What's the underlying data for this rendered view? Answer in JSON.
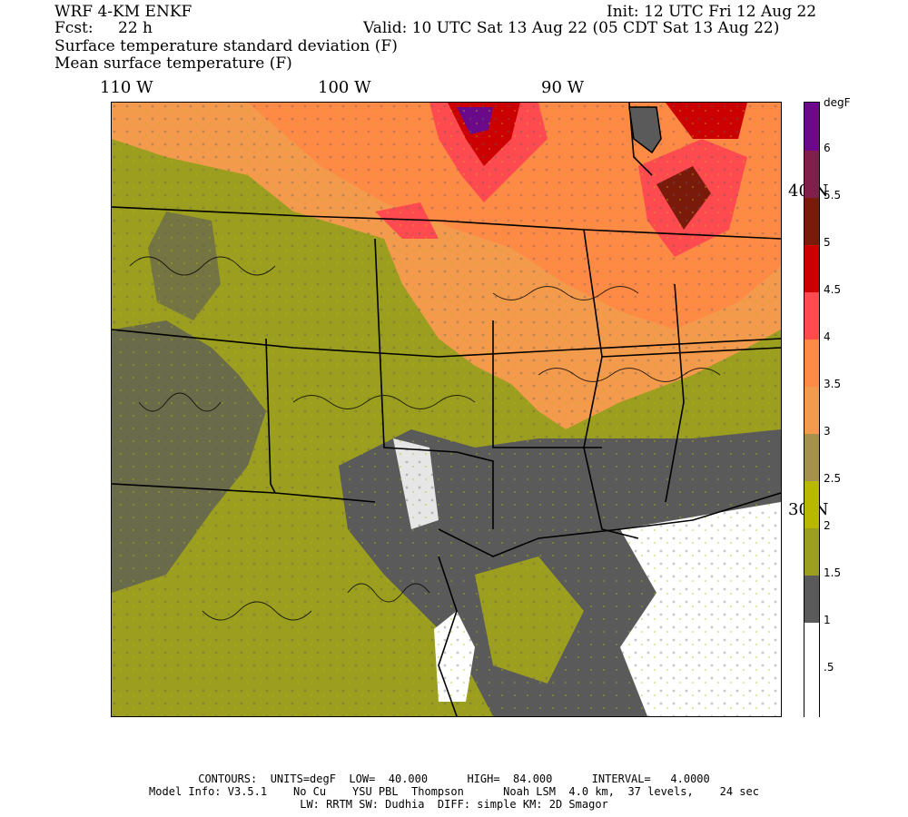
{
  "header": {
    "model": "WRF 4-KM ENKF",
    "fcst_label": "Fcst:",
    "fcst_value": "22 h",
    "init": "Init: 12 UTC Fri 12 Aug 22",
    "valid": "Valid: 10 UTC Sat 13 Aug 22 (05 CDT Sat 13 Aug 22)",
    "field1": "Surface temperature standard deviation (F)",
    "field2": "Mean surface temperature (F)"
  },
  "axes": {
    "longitudes": [
      "110 W",
      "100 W",
      "90 W"
    ],
    "latitudes": [
      "40 N",
      "30 N"
    ]
  },
  "colorbar": {
    "units": "degF",
    "ticks": [
      "6",
      "5.5",
      "5",
      "4.5",
      "4",
      "3.5",
      "3",
      "2.5",
      "2",
      "1.5",
      "1",
      ".5"
    ],
    "colors": [
      "#ffffff",
      "#ffffff",
      "#5a5a5a",
      "#9b9e1e",
      "#b8b800",
      "#a5904e",
      "#f39a4d",
      "#ff8a45",
      "#ff4a50",
      "#cc0000",
      "#7a1a0a",
      "#80204a",
      "#6a0a8a"
    ]
  },
  "footer": {
    "line1": "CONTOURS:  UNITS=degF  LOW=  40.000      HIGH=  84.000      INTERVAL=   4.0000",
    "line2": "Model Info: V3.5.1    No Cu    YSU PBL  Thompson      Noah LSM  4.0 km,  37 levels,    24 sec",
    "line3": "LW: RRTM SW: Dudhia  DIFF: simple KM: 2D Smagor"
  }
}
